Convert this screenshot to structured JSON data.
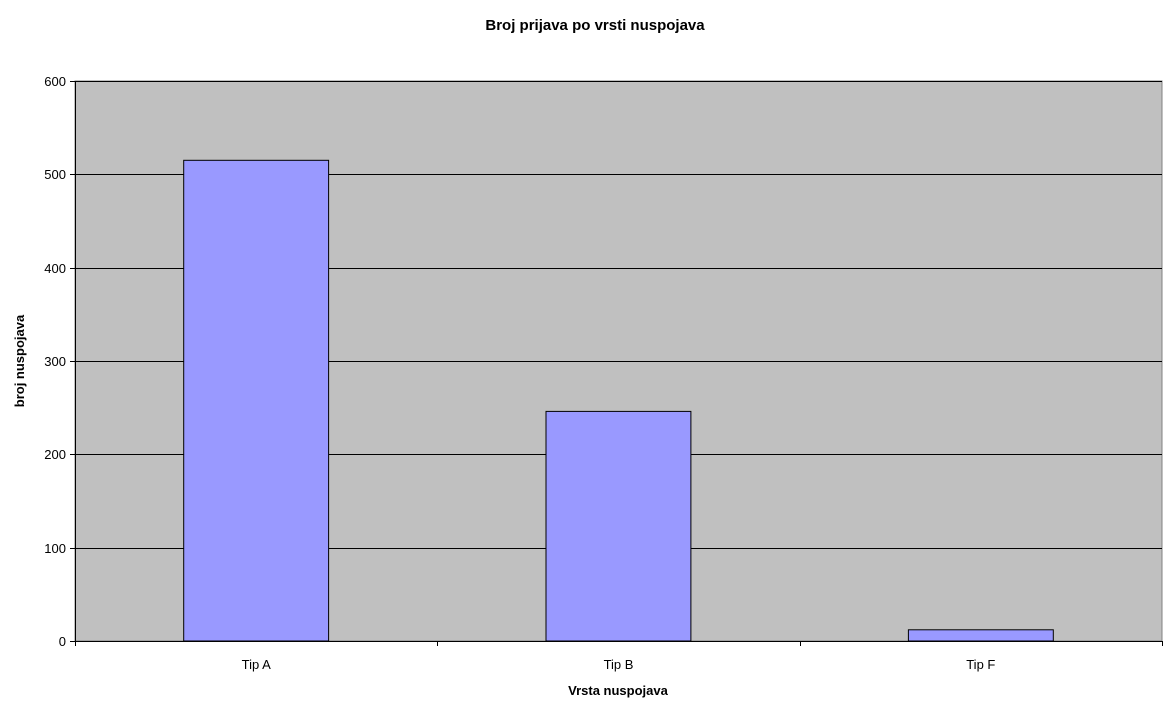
{
  "chart_data": {
    "type": "bar",
    "title": "Broj prijava po vrsti nuspojava",
    "xlabel": "Vrsta nuspojava",
    "ylabel": "broj nuspojava",
    "categories": [
      "Tip A",
      "Tip B",
      "Tip F"
    ],
    "series": [
      {
        "values": [
          515,
          246,
          12
        ]
      }
    ],
    "ylim": [
      0,
      600
    ],
    "yticks": [
      0,
      100,
      200,
      300,
      400,
      500,
      600
    ],
    "grid": true,
    "legend": "none",
    "colors": {
      "bar_fill": "#9999ff",
      "bar_stroke": "#000000",
      "plot_background": "#c0c0c0",
      "gridline": "#000000"
    }
  }
}
